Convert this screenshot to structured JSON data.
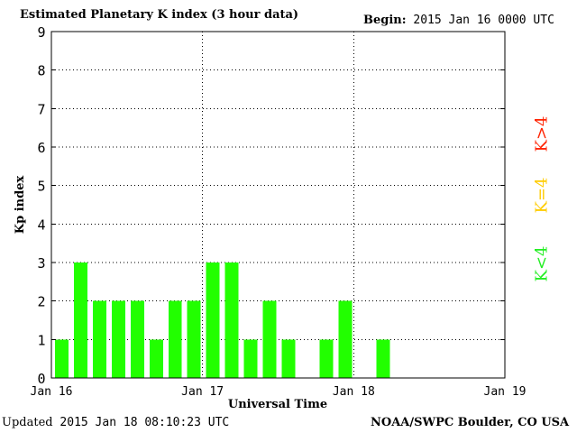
{
  "header": {
    "title": "Estimated Planetary K index (3 hour data)",
    "begin_label": "Begin:",
    "begin_value": "2015 Jan 16 0000 UTC"
  },
  "footer": {
    "updated_label": "Updated",
    "updated_value": "2015 Jan 18 08:10:23 UTC",
    "credit": "NOAA/SWPC Boulder, CO USA"
  },
  "legend": [
    {
      "label": "K>4",
      "color": "#ff2200"
    },
    {
      "label": "K=4",
      "color": "#ffcc00"
    },
    {
      "label": "K<4",
      "color": "#22ee22"
    }
  ],
  "chart_data": {
    "type": "bar",
    "title": "Estimated Planetary K index (3 hour data)",
    "xlabel": "Universal Time",
    "ylabel": "Kp index",
    "ylim": [
      0,
      9
    ],
    "yticks": [
      0,
      1,
      2,
      3,
      4,
      5,
      6,
      7,
      8,
      9
    ],
    "xticks": [
      "Jan 16",
      "Jan 17",
      "Jan 18",
      "Jan 19"
    ],
    "grid": true,
    "bar_color": "#22ff00",
    "series": [
      {
        "x": [
          "2015-01-16 00:00",
          "2015-01-16 03:00",
          "2015-01-16 06:00",
          "2015-01-16 09:00",
          "2015-01-16 12:00",
          "2015-01-16 15:00",
          "2015-01-16 18:00",
          "2015-01-16 21:00",
          "2015-01-17 00:00",
          "2015-01-17 03:00",
          "2015-01-17 06:00",
          "2015-01-17 09:00",
          "2015-01-17 12:00",
          "2015-01-17 15:00",
          "2015-01-17 18:00",
          "2015-01-17 21:00",
          "2015-01-18 00:00",
          "2015-01-18 03:00",
          "2015-01-18 06:00"
        ],
        "values": [
          1,
          3,
          2,
          2,
          2,
          1,
          2,
          2,
          3,
          3,
          1,
          2,
          1,
          0,
          1,
          2,
          0,
          1,
          0
        ]
      }
    ]
  }
}
